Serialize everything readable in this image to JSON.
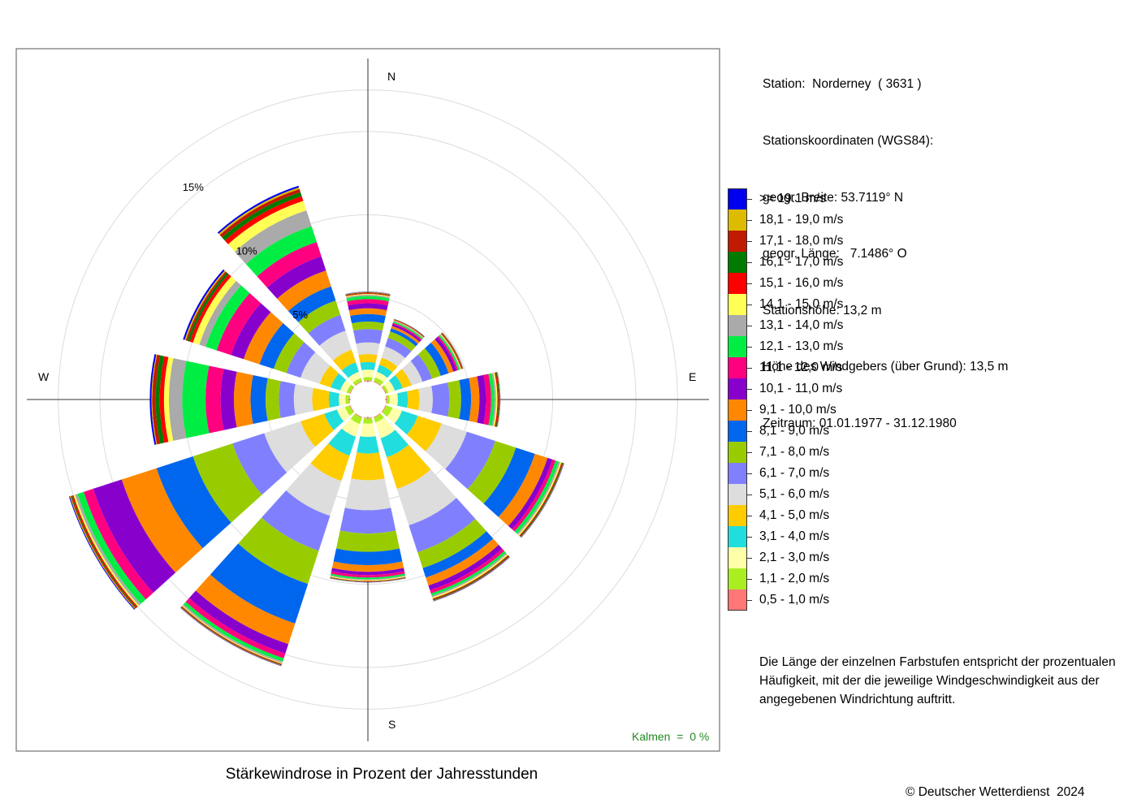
{
  "station_info": {
    "station": "Station:  Norderney  ( 3631 )",
    "coords_title": "Stationskoordinaten (WGS84):",
    "latitude": "geogr. Breite: 53.7119° N",
    "longitude": "geogr. Länge:   7.1486° O",
    "elevation": "Stationshöhe: 13,2 m",
    "anemometer_height": "Höhe des Windgebers (über Grund): 13,5 m",
    "period": "Zeitraum: 01.01.1977 - 31.12.1980"
  },
  "legend": {
    "items": [
      {
        "label": ">= 19.1 m/s",
        "color": "#0000ee"
      },
      {
        "label": "18,1 - 19,0 m/s",
        "color": "#ddbb00"
      },
      {
        "label": "17,1 - 18,0 m/s",
        "color": "#c01a00"
      },
      {
        "label": "16,1 - 17,0 m/s",
        "color": "#007a00"
      },
      {
        "label": "15,1 - 16,0 m/s",
        "color": "#ff0000"
      },
      {
        "label": "14,1 - 15,0 m/s",
        "color": "#ffff55"
      },
      {
        "label": "13,1 - 14,0 m/s",
        "color": "#aaaaaa"
      },
      {
        "label": "12,1 - 13,0 m/s",
        "color": "#00ee44"
      },
      {
        "label": "11,1 - 12,0 m/s",
        "color": "#ff0080"
      },
      {
        "label": "10,1 - 11,0 m/s",
        "color": "#8800cc"
      },
      {
        "label": "9,1 - 10,0 m/s",
        "color": "#ff8800"
      },
      {
        "label": "8,1 - 9,0 m/s",
        "color": "#0066ee"
      },
      {
        "label": "7,1 - 8,0 m/s",
        "color": "#99cc00"
      },
      {
        "label": "6,1 - 7,0 m/s",
        "color": "#8080ff"
      },
      {
        "label": "5,1 - 6,0 m/s",
        "color": "#dddddd"
      },
      {
        "label": "4,1 - 5,0 m/s",
        "color": "#ffcc00"
      },
      {
        "label": "3,1 - 4,0 m/s",
        "color": "#22dddd"
      },
      {
        "label": "2,1 - 3,0 m/s",
        "color": "#ffffaa"
      },
      {
        "label": "1,1 - 2,0 m/s",
        "color": "#aaee22"
      },
      {
        "label": "0,5 - 1,0 m/s",
        "color": "#ff7777"
      }
    ]
  },
  "note": "Die Länge der einzelnen Farbstufen entspricht der prozentualen Häufigkeit, mit der die jeweilige Windgeschwindigkeit aus der angegebenen Windrichtung auftritt.",
  "calm": "Kalmen  =  0 %",
  "caption": "Stärkewindrose in Prozent der Jahresstunden",
  "copyright": "© Deutscher Wetterdienst  2024",
  "chart_data": {
    "type": "wind_rose",
    "title": "Stärkewindrose in Prozent der Jahresstunden",
    "compass_labels": {
      "N": "N",
      "E": "E",
      "S": "S",
      "W": "W"
    },
    "ring_labels": [
      "5%",
      "10%",
      "15%"
    ],
    "rings_percent": [
      5,
      10,
      15
    ],
    "max_percent": 17.5,
    "inner_offset_percent": 1.1,
    "directions_deg": [
      0,
      30,
      60,
      90,
      120,
      150,
      180,
      210,
      240,
      270,
      300,
      330
    ],
    "speed_classes_low_to_high": [
      "0,5 - 1,0 m/s",
      "1,1 - 2,0 m/s",
      "2,1 - 3,0 m/s",
      "3,1 - 4,0 m/s",
      "4,1 - 5,0 m/s",
      "5,1 - 6,0 m/s",
      "6,1 - 7,0 m/s",
      "7,1 - 8,0 m/s",
      "8,1 - 9,0 m/s",
      "9,1 - 10,0 m/s",
      "10,1 - 11,0 m/s",
      "11,1 - 12,0 m/s",
      "12,1 - 13,0 m/s",
      "13,1 - 14,0 m/s",
      "14,1 - 15,0 m/s",
      "15,1 - 16,0 m/s",
      "16,1 - 17,0 m/s",
      "17,1 - 18,0 m/s",
      "18,1 - 19,0 m/s",
      ">= 19.1 m/s"
    ],
    "sectors": [
      {
        "direction": 0,
        "values": [
          0.05,
          0.2,
          0.45,
          0.45,
          0.48,
          0.7,
          0.8,
          0.45,
          0.45,
          0.35,
          0.3,
          0.25,
          0.18,
          0.08,
          0.05,
          0.04,
          0.03,
          0.03,
          0.02,
          0.02
        ]
      },
      {
        "direction": 30,
        "values": [
          0.05,
          0.25,
          0.35,
          0.45,
          0.45,
          0.7,
          0.55,
          0.4,
          0.2,
          0.15,
          0.12,
          0.08,
          0.08,
          0.05,
          0.03,
          0.03,
          0.02,
          0.02,
          0.01,
          0.01
        ]
      },
      {
        "direction": 60,
        "values": [
          0.05,
          0.15,
          0.4,
          0.5,
          0.55,
          0.7,
          0.6,
          0.55,
          0.5,
          0.3,
          0.2,
          0.1,
          0.1,
          0.05,
          0.05,
          0.04,
          0.03,
          0.03,
          0.02,
          0.01
        ]
      },
      {
        "direction": 90,
        "values": [
          0.05,
          0.15,
          0.5,
          0.6,
          0.7,
          0.8,
          1.0,
          0.7,
          0.6,
          0.5,
          0.4,
          0.3,
          0.2,
          0.1,
          0.08,
          0.07,
          0.05,
          0.03,
          0.02,
          0.01
        ]
      },
      {
        "direction": 120,
        "values": [
          0.05,
          0.4,
          0.6,
          1.0,
          1.5,
          1.6,
          1.8,
          1.3,
          1.2,
          0.8,
          0.3,
          0.2,
          0.2,
          0.1,
          0.08,
          0.05,
          0.05,
          0.03,
          0.02,
          0.02
        ]
      },
      {
        "direction": 150,
        "values": [
          0.05,
          0.3,
          1.0,
          1.2,
          2.0,
          2.3,
          1.7,
          1.0,
          0.6,
          0.5,
          0.3,
          0.2,
          0.15,
          0.1,
          0.08,
          0.05,
          0.05,
          0.03,
          0.02,
          0.02
        ]
      },
      {
        "direction": 180,
        "values": [
          0.05,
          0.3,
          0.8,
          1.0,
          1.6,
          1.8,
          1.4,
          1.1,
          0.8,
          0.4,
          0.2,
          0.15,
          0.1,
          0.05,
          0.05,
          0.03,
          0.02,
          0.02,
          0.01,
          0.01
        ]
      },
      {
        "direction": 210,
        "values": [
          0.05,
          0.4,
          0.8,
          1.2,
          1.6,
          2.2,
          2.2,
          2.1,
          2.5,
          1.3,
          0.6,
          0.3,
          0.2,
          0.1,
          0.05,
          0.04,
          0.03,
          0.03,
          0.02,
          0.02
        ]
      },
      {
        "direction": 240,
        "values": [
          0.05,
          0.3,
          0.5,
          0.8,
          1.5,
          2.3,
          2.0,
          2.5,
          2.3,
          2.2,
          1.8,
          0.6,
          0.4,
          0.15,
          0.1,
          0.08,
          0.05,
          0.05,
          0.05,
          0.05
        ]
      },
      {
        "direction": 270,
        "values": [
          0.05,
          0.2,
          0.4,
          0.6,
          1.0,
          1.1,
          0.9,
          0.8,
          0.9,
          1.0,
          0.8,
          0.9,
          1.4,
          0.8,
          0.3,
          0.25,
          0.25,
          0.2,
          0.05,
          0.1
        ]
      },
      {
        "direction": 300,
        "values": [
          0.05,
          0.2,
          0.4,
          0.6,
          0.7,
          1.2,
          0.9,
          0.8,
          0.9,
          1.0,
          0.8,
          0.9,
          0.7,
          0.4,
          0.4,
          0.2,
          0.15,
          0.1,
          0.08,
          0.1
        ]
      },
      {
        "direction": 330,
        "values": [
          0.05,
          0.2,
          0.4,
          0.6,
          0.8,
          1.2,
          1.0,
          0.9,
          0.9,
          1.0,
          0.9,
          0.9,
          1.0,
          1.0,
          0.6,
          0.3,
          0.25,
          0.2,
          0.1,
          0.1
        ]
      }
    ]
  }
}
